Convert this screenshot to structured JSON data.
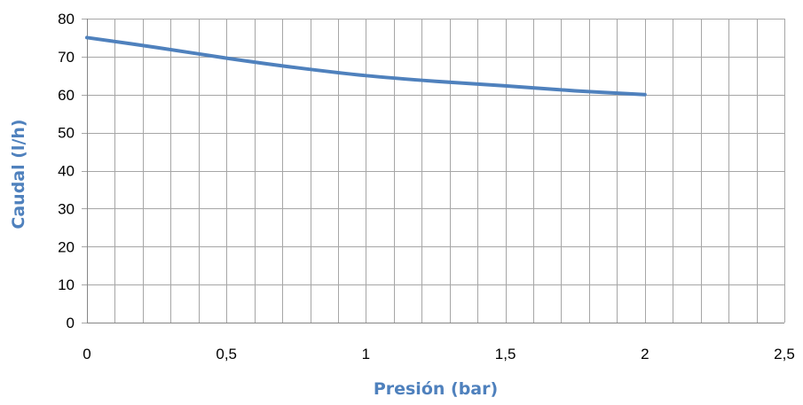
{
  "chart_data": {
    "type": "line",
    "title": "",
    "xlabel": "Presión (bar)",
    "ylabel": "Caudal (l/h)",
    "xlim": [
      0,
      2.5
    ],
    "ylim": [
      0,
      80
    ],
    "x_ticks": [
      "0",
      "0,5",
      "1",
      "1,5",
      "2",
      "2,5"
    ],
    "y_ticks": [
      "0",
      "10",
      "20",
      "30",
      "40",
      "50",
      "60",
      "70",
      "80"
    ],
    "x_minor_step": 0.1,
    "y_step": 10,
    "grid": true,
    "legend": "none",
    "colors": {
      "series": "#4f81bd",
      "axis_title": "#4f81bd",
      "grid": "#a6a6a6"
    },
    "series": [
      {
        "x": [
          0,
          0.25,
          0.5,
          0.75,
          1.0,
          1.25,
          1.5,
          1.75,
          2.0
        ],
        "y": [
          75,
          72.4,
          69.6,
          67.1,
          65.0,
          63.5,
          62.3,
          61.0,
          60.0
        ]
      }
    ]
  }
}
